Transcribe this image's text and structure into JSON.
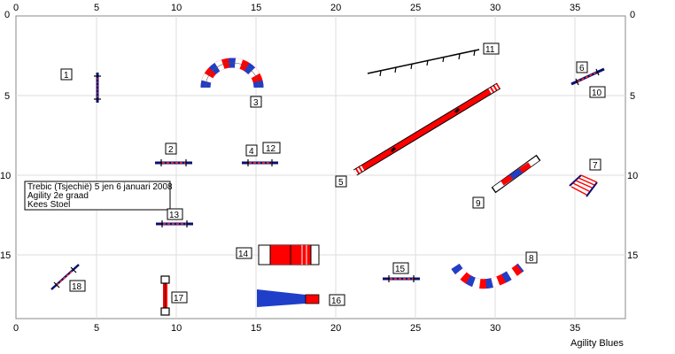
{
  "axis": {
    "top_labels": [
      "0",
      "5",
      "10",
      "15",
      "20",
      "25",
      "30",
      "35"
    ],
    "bottom_labels": [
      "0",
      "5",
      "10",
      "15",
      "20",
      "25",
      "30",
      "35"
    ],
    "left_labels": [
      "0",
      "5",
      "10",
      "15"
    ],
    "right_labels": [
      "0",
      "5",
      "10",
      "15"
    ]
  },
  "info_box": {
    "line1": "Trebic (Tsjechië) 5 jen 6 januari 2008",
    "line2": "Agility 2e graad",
    "line3": "Kees Stoel"
  },
  "footer": "Agility Blues",
  "obstacle_numbers": [
    "1",
    "2",
    "3",
    "4",
    "5",
    "6",
    "7",
    "8",
    "9",
    "10",
    "11",
    "12",
    "13",
    "14",
    "15",
    "16",
    "17",
    "18"
  ],
  "colors": {
    "red": "#ff0000",
    "blue": "#1f3fc8",
    "navy": "#0a1070",
    "frame": "#888888"
  }
}
